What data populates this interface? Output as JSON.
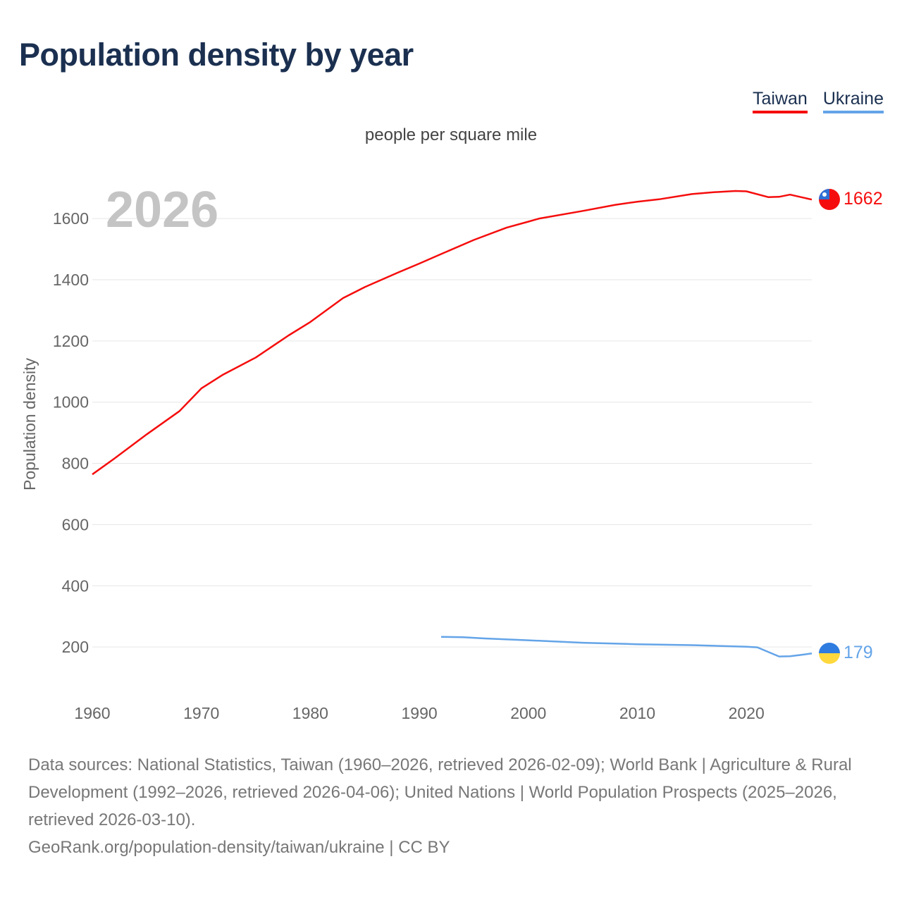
{
  "title": "Population density by year",
  "legend": [
    {
      "label": "Taiwan",
      "color": "#f50d0d"
    },
    {
      "label": "Ukraine",
      "color": "#64a4e8"
    }
  ],
  "unit_label": "people per square mile",
  "year_watermark": "2026",
  "sources": "Data sources: National Statistics, Taiwan (1960–2026, retrieved 2026-02-09); World Bank | Agriculture & Rural Development (1992–2026, retrieved 2026-04-06); United Nations | World Population Prospects (2025–2026, retrieved 2026-03-10).",
  "credit": "GeoRank.org/population-density/taiwan/ukraine | CC BY",
  "chart_data": {
    "type": "line",
    "title": "Population density by year",
    "xlabel": "",
    "ylabel": "Population density",
    "xlim": [
      1960,
      2026
    ],
    "ylim": [
      0,
      1700
    ],
    "xticks": [
      1960,
      1970,
      1980,
      1990,
      2000,
      2010,
      2020
    ],
    "yticks": [
      200,
      400,
      600,
      800,
      1000,
      1200,
      1400,
      1600
    ],
    "grid": true,
    "legend_position": "top-right",
    "series": [
      {
        "name": "Taiwan",
        "color": "#f50d0d",
        "end_label": "1662",
        "x": [
          1960,
          1962,
          1965,
          1968,
          1970,
          1972,
          1975,
          1978,
          1980,
          1983,
          1985,
          1988,
          1990,
          1992,
          1995,
          1998,
          2000,
          2001,
          2005,
          2008,
          2010,
          2012,
          2015,
          2017,
          2019,
          2020,
          2022,
          2023,
          2024,
          2025,
          2026
        ],
        "y": [
          764,
          815,
          895,
          971,
          1045,
          1090,
          1146,
          1218,
          1262,
          1340,
          1376,
          1423,
          1453,
          1484,
          1530,
          1570,
          1590,
          1600,
          1625,
          1645,
          1655,
          1663,
          1680,
          1686,
          1690,
          1689,
          1670,
          1671,
          1678,
          1670,
          1662
        ]
      },
      {
        "name": "Ukraine",
        "color": "#64a4e8",
        "end_label": "179",
        "x": [
          1992,
          1994,
          1996,
          2000,
          2005,
          2010,
          2015,
          2020,
          2021,
          2023,
          2024,
          2025,
          2026
        ],
        "y": [
          233,
          232,
          228,
          222,
          214,
          209,
          206,
          201,
          199,
          169,
          170,
          174,
          179
        ]
      }
    ]
  }
}
